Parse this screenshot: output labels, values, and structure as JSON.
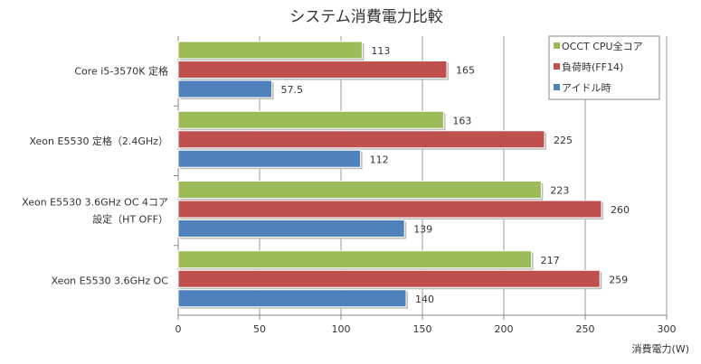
{
  "chart_data": {
    "type": "bar",
    "orientation": "horizontal",
    "title": "システム消費電力比較",
    "xlabel": "消費電力(W)",
    "ylabel": "",
    "xlim": [
      0,
      300
    ],
    "xticks": [
      "0",
      "50",
      "100",
      "150",
      "200",
      "250",
      "300"
    ],
    "grid": true,
    "legend_position": "top-right",
    "categories": [
      [
        "Core i5-3570K 定格"
      ],
      [
        "Xeon E5530 定格（2.4GHz）"
      ],
      [
        "Xeon E5530 3.6GHz OC 4コア",
        "設定（HT OFF）"
      ],
      [
        "Xeon E5530 3.6GHz OC"
      ]
    ],
    "series": [
      {
        "name": "OCCT CPU全コア",
        "color": "#9bbb59",
        "values": [
          113,
          163,
          223,
          217
        ],
        "labels": [
          "113",
          "163",
          "223",
          "217"
        ]
      },
      {
        "name": "負荷時(FF14)",
        "color": "#c0504d",
        "values": [
          165,
          225,
          260,
          259
        ],
        "labels": [
          "165",
          "225",
          "260",
          "259"
        ]
      },
      {
        "name": "アイドル時",
        "color": "#4f81bd",
        "values": [
          57.5,
          112,
          139,
          140
        ],
        "labels": [
          "57.5",
          "112",
          "139",
          "140"
        ]
      }
    ]
  }
}
